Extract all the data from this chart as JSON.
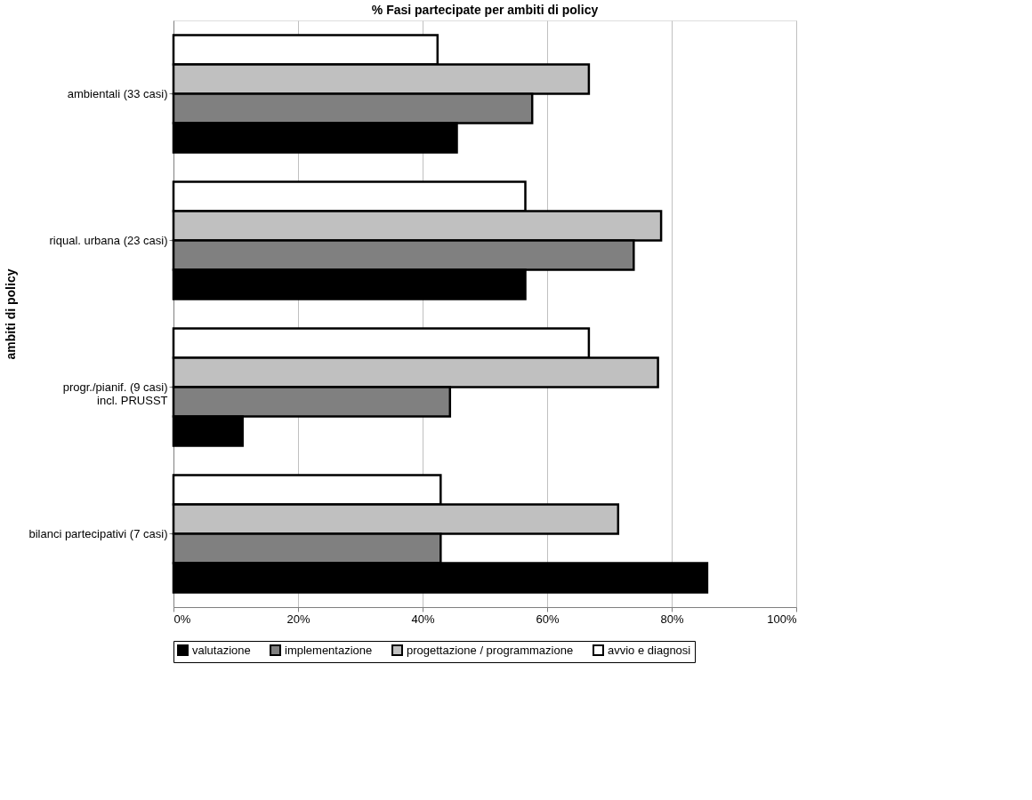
{
  "chart_data": {
    "type": "bar",
    "orientation": "horizontal",
    "title": "% Fasi partecipate per ambiti di policy",
    "ylabel": "ambiti di policy",
    "categories": [
      "ambientali (33 casi)",
      "riqual. urbana (23 casi)",
      "progr./pianif. (9 casi)\nincl. PRUSST",
      "bilanci partecipativi (7 casi)"
    ],
    "series": [
      {
        "name": "avvio e diagnosi",
        "color": "#ffffff",
        "values": [
          42.4,
          56.5,
          66.7,
          42.9
        ]
      },
      {
        "name": "progettazione / programmazione",
        "color": "#c0c0c0",
        "values": [
          66.7,
          78.3,
          77.8,
          71.4
        ]
      },
      {
        "name": "implementazione",
        "color": "#808080",
        "values": [
          57.6,
          73.9,
          44.4,
          42.9
        ]
      },
      {
        "name": "valutazione",
        "color": "#000000",
        "values": [
          45.5,
          56.5,
          11.1,
          85.7
        ]
      }
    ],
    "xlim": [
      0,
      100
    ],
    "xticks": [
      {
        "value": 0,
        "label": "0%"
      },
      {
        "value": 20,
        "label": "20%"
      },
      {
        "value": 40,
        "label": "40%"
      },
      {
        "value": 60,
        "label": "60%"
      },
      {
        "value": 80,
        "label": "80%"
      },
      {
        "value": 100,
        "label": "100%"
      }
    ],
    "grid": "x",
    "legend": "bottom"
  }
}
